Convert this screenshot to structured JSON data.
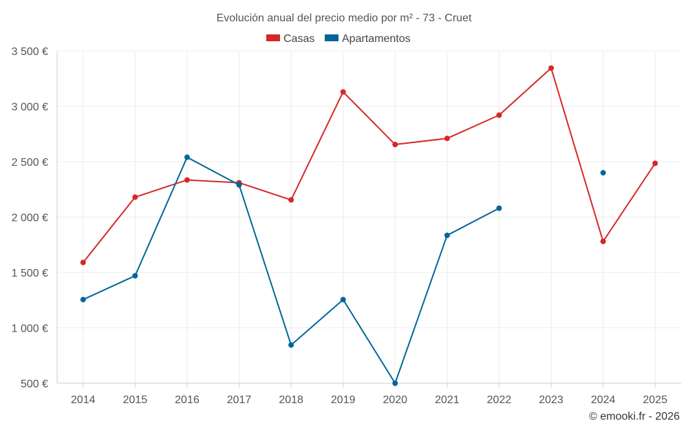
{
  "chart_data": {
    "type": "line",
    "title": "Evolución anual del precio medio por m² - 73 - Cruet",
    "categories": [
      "2014",
      "2015",
      "2016",
      "2017",
      "2018",
      "2019",
      "2020",
      "2021",
      "2022",
      "2023",
      "2024",
      "2025"
    ],
    "series": [
      {
        "name": "Casas",
        "color": "#d62728",
        "values": [
          1590,
          2180,
          2335,
          2310,
          2155,
          3130,
          2655,
          2710,
          2920,
          3345,
          1780,
          2485
        ]
      },
      {
        "name": "Apartamentos",
        "color": "#006699",
        "values": [
          1255,
          1470,
          2540,
          2290,
          845,
          1255,
          500,
          1835,
          2080,
          null,
          2400,
          null
        ]
      }
    ],
    "ylim": [
      500,
      3500
    ],
    "yticks": [
      500,
      1000,
      1500,
      2000,
      2500,
      3000,
      3500
    ],
    "ytick_labels": [
      "500 €",
      "1 000 €",
      "1 500 €",
      "2 000 €",
      "2 500 €",
      "3 000 €",
      "3 500 €"
    ],
    "xlabel": "",
    "ylabel": "",
    "legend": "top-center",
    "grid": true
  },
  "credit": "© emooki.fr - 2026"
}
